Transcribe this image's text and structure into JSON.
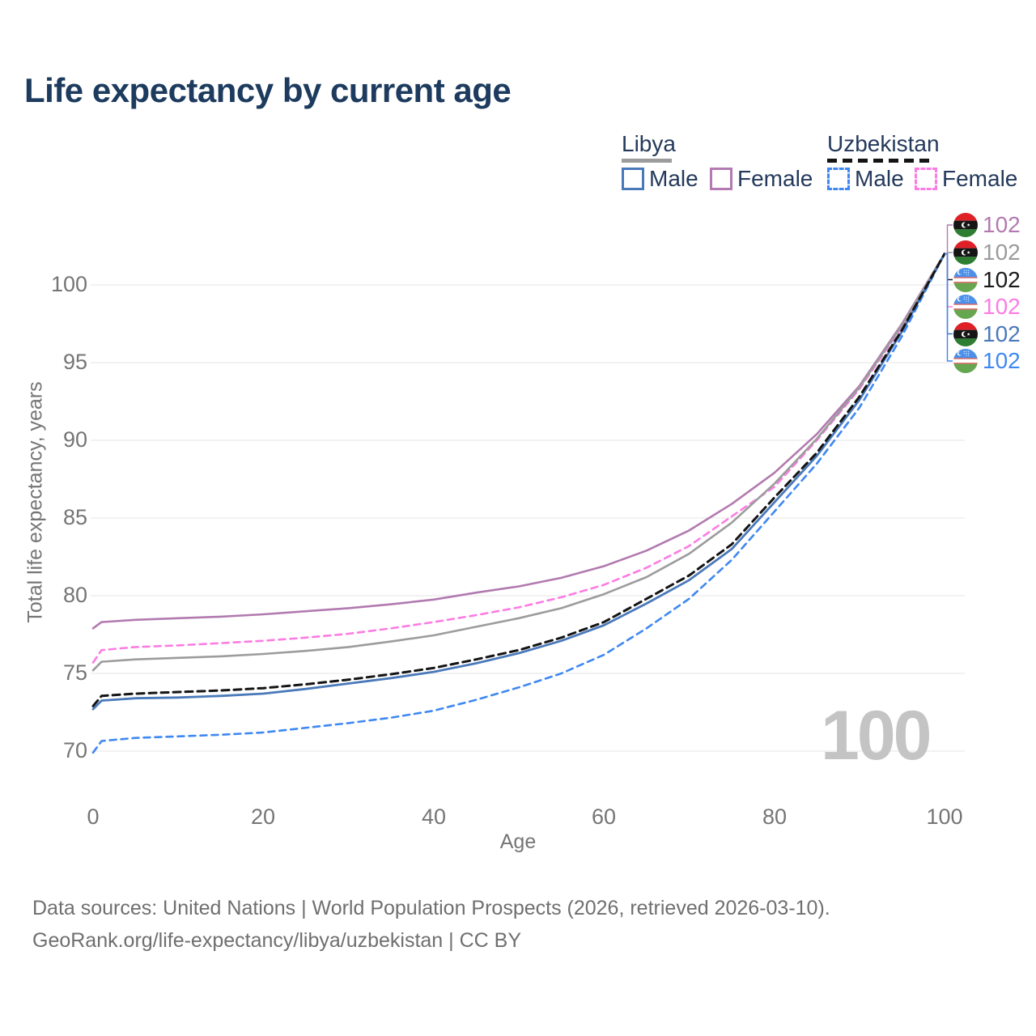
{
  "title": "Life expectancy by current age",
  "legend": {
    "groups": [
      {
        "label": "Libya",
        "line_color": "#9c9c9c",
        "line_style": "solid",
        "items": [
          {
            "label": "Male",
            "color": "#4a79ba",
            "style": "solid"
          },
          {
            "label": "Female",
            "color": "#b27ab0",
            "style": "solid"
          }
        ]
      },
      {
        "label": "Uzbekistan",
        "line_color": "#141414",
        "line_style": "dashed",
        "items": [
          {
            "label": "Male",
            "color": "#3f88f2",
            "style": "dashed"
          },
          {
            "label": "Female",
            "color": "#fc7ce3",
            "style": "dashed"
          }
        ]
      }
    ]
  },
  "chart_data": {
    "type": "line",
    "title": "Life expectancy by current age",
    "xlabel": "Age",
    "ylabel": "Total life expectancy, years",
    "x_ticks": [
      0,
      20,
      40,
      60,
      80,
      100
    ],
    "y_ticks": [
      70,
      75,
      80,
      85,
      90,
      95,
      100
    ],
    "xlim": [
      0,
      100
    ],
    "ylim": [
      69,
      103
    ],
    "grid": "horizontal-only",
    "grid_color": "#eaeaea",
    "ages": [
      0,
      1,
      5,
      10,
      15,
      20,
      25,
      30,
      35,
      40,
      45,
      50,
      55,
      60,
      65,
      70,
      75,
      80,
      85,
      90,
      95,
      100
    ],
    "series": [
      {
        "name": "Libya Female",
        "country": "Libya",
        "sex": "Female",
        "color": "#b27ab0",
        "dash": "solid",
        "width": 2.6,
        "values": [
          77.9,
          78.3,
          78.45,
          78.55,
          78.65,
          78.8,
          79.0,
          79.2,
          79.45,
          79.75,
          80.2,
          80.6,
          81.15,
          81.9,
          82.9,
          84.2,
          85.9,
          87.9,
          90.4,
          93.5,
          97.5,
          102
        ]
      },
      {
        "name": "Uzbekistan Female",
        "country": "Uzbekistan",
        "sex": "Female",
        "color": "#fc7ce3",
        "dash": "8 6",
        "width": 2.6,
        "values": [
          75.7,
          76.5,
          76.7,
          76.8,
          76.95,
          77.1,
          77.3,
          77.55,
          77.9,
          78.3,
          78.75,
          79.25,
          79.9,
          80.7,
          81.8,
          83.2,
          85.1,
          87.0,
          90.0,
          93.3,
          97.3,
          102
        ]
      },
      {
        "name": "Libya Total",
        "country": "Libya",
        "sex": "Both",
        "color": "#9c9c9c",
        "dash": "solid",
        "width": 2.6,
        "values": [
          75.2,
          75.75,
          75.9,
          76.0,
          76.1,
          76.25,
          76.45,
          76.7,
          77.05,
          77.45,
          78.0,
          78.55,
          79.2,
          80.1,
          81.2,
          82.7,
          84.7,
          87.2,
          90.1,
          93.4,
          97.4,
          102
        ]
      },
      {
        "name": "Uzbekistan Male",
        "country": "Uzbekistan",
        "sex": "Male",
        "color": "#3f88f2",
        "dash": "8 6",
        "width": 2.6,
        "values": [
          69.9,
          70.65,
          70.85,
          70.95,
          71.05,
          71.2,
          71.5,
          71.8,
          72.15,
          72.6,
          73.3,
          74.1,
          75.0,
          76.2,
          77.9,
          79.8,
          82.3,
          85.4,
          88.5,
          92.1,
          96.7,
          102
        ]
      },
      {
        "name": "Libya Male",
        "country": "Libya",
        "sex": "Male",
        "color": "#4a79ba",
        "dash": "solid",
        "width": 2.8,
        "values": [
          72.7,
          73.25,
          73.4,
          73.45,
          73.55,
          73.7,
          74.0,
          74.35,
          74.7,
          75.1,
          75.65,
          76.3,
          77.1,
          78.1,
          79.5,
          81.0,
          83.0,
          86.0,
          89.0,
          92.6,
          97.0,
          102
        ]
      },
      {
        "name": "Uzbekistan Total",
        "country": "Uzbekistan",
        "sex": "Both",
        "color": "#141414",
        "dash": "9 6",
        "width": 3,
        "values": [
          72.9,
          73.55,
          73.7,
          73.8,
          73.9,
          74.05,
          74.3,
          74.6,
          74.95,
          75.35,
          75.9,
          76.5,
          77.3,
          78.3,
          79.8,
          81.3,
          83.3,
          86.3,
          89.2,
          92.8,
          97.1,
          102
        ]
      }
    ],
    "end_labels": [
      {
        "flag": "libya",
        "series": "Libya Female",
        "value": "102",
        "color": "#b27ab0"
      },
      {
        "flag": "libya",
        "series": "Libya Total",
        "value": "102",
        "color": "#9b9b9b"
      },
      {
        "flag": "uzbekistan",
        "series": "Uzbekistan Total",
        "value": "102",
        "color": "#1a1a1a"
      },
      {
        "flag": "uzbekistan",
        "series": "Uzbekistan Female",
        "value": "102",
        "color": "#fc7ce3"
      },
      {
        "flag": "libya",
        "series": "Libya Male",
        "value": "102",
        "color": "#4a79ba"
      },
      {
        "flag": "uzbekistan",
        "series": "Uzbekistan Male",
        "value": "102",
        "color": "#3f88f2"
      }
    ],
    "watermark": "100"
  },
  "footer": {
    "line1": "Data sources: United Nations | World Population Prospects (2026, retrieved 2026-03-10).",
    "line2": "GeoRank.org/life-expectancy/libya/uzbekistan | CC BY"
  }
}
